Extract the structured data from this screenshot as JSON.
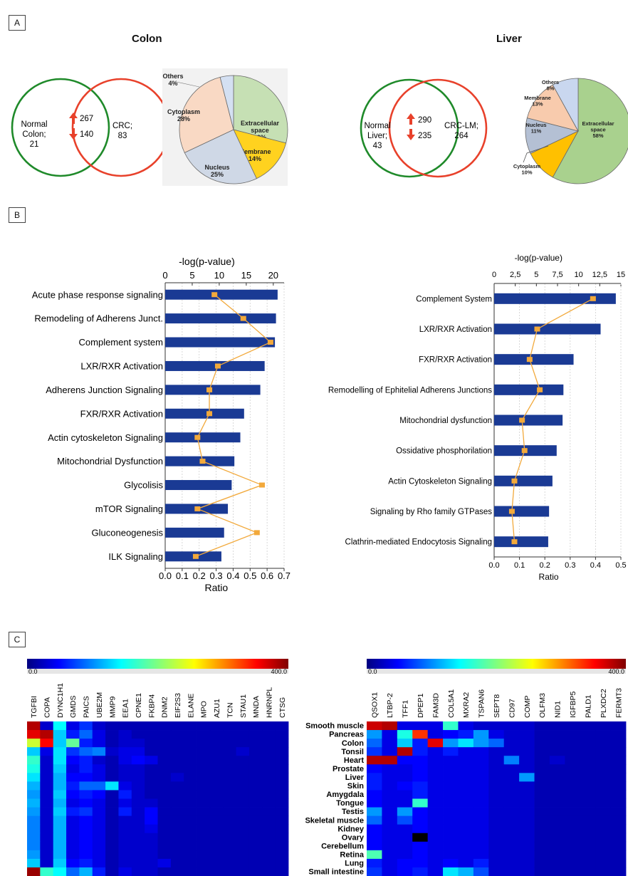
{
  "panels": {
    "a": "A",
    "b": "B",
    "c": "C"
  },
  "colors": {
    "venn_normal": "#1f8a2a",
    "venn_disease": "#e8412b",
    "up_arrow": "#e8412b",
    "bar": "#1a3a94",
    "line": "#f2a93b"
  },
  "venn": {
    "colon": {
      "title": "Colon",
      "left_label": [
        "Normal",
        "Colon;",
        "21"
      ],
      "right_label": [
        "CRC;",
        "83"
      ],
      "up": "267",
      "down": "140"
    },
    "liver": {
      "title": "Liver",
      "left_label": [
        "Normal",
        "Liver;",
        "43"
      ],
      "right_label": [
        "CRC-LM;",
        "264"
      ],
      "up": "290",
      "down": "235"
    }
  },
  "chart_data": [
    {
      "type": "pie",
      "name": "Colon",
      "slices": [
        {
          "label": [
            "Extracellular",
            "space"
          ],
          "pct": "29%",
          "value": 29,
          "color": "#c6e0b4"
        },
        {
          "label": [
            "Membrane"
          ],
          "pct": "14%",
          "value": 14,
          "color": "#ffd21f"
        },
        {
          "label": [
            "Nucleus"
          ],
          "pct": "25%",
          "value": 25,
          "color": "#cfd8e6"
        },
        {
          "label": [
            "Cytoplasm"
          ],
          "pct": "28%",
          "value": 28,
          "color": "#f9d9c4"
        },
        {
          "label": [
            "Others"
          ],
          "pct": "4%",
          "value": 4,
          "color": "#d4e0f2"
        }
      ]
    },
    {
      "type": "pie",
      "name": "Liver",
      "slices": [
        {
          "label": [
            "Extracellular",
            "space"
          ],
          "pct": "58%",
          "value": 58,
          "color": "#a9d18e"
        },
        {
          "label": [
            "Cytoplasm"
          ],
          "pct": "10%",
          "value": 10,
          "color": "#ffc000"
        },
        {
          "label": [
            "Nucleus"
          ],
          "pct": "11%",
          "value": 11,
          "color": "#b4c0d4"
        },
        {
          "label": [
            "Membrane"
          ],
          "pct": "13%",
          "value": 13,
          "color": "#f8cbad"
        },
        {
          "label": [
            "Others"
          ],
          "pct": "8%",
          "value": 8,
          "color": "#c9d7ef"
        }
      ]
    },
    {
      "type": "bar",
      "name": "Colon pathways",
      "xlabel_top": "-log(p-value)",
      "xlabel_bottom": "Ratio",
      "top_ticks": [
        "0",
        "5",
        "10",
        "15",
        "20"
      ],
      "top_range": [
        0,
        22
      ],
      "bottom_ticks": [
        "0.0",
        "0.1",
        "0.2",
        "0.3",
        "0.4",
        "0.5",
        "0.6",
        "0.7"
      ],
      "bottom_range": [
        0,
        0.7
      ],
      "categories": [
        "Acute phase response signaling",
        "Remodeling of Adherens Junct.",
        "Complement system",
        "LXR/RXR Activation",
        "Adherens Junction Signaling",
        "FXR/RXR Activation",
        "Actin cytoskeleton Signaling",
        "Mitochondrial Dysfunction",
        "Glycolisis",
        "mTOR Signaling",
        "Gluconeogenesis",
        "ILK Signaling"
      ],
      "series": [
        {
          "name": "-log(p-value)",
          "values": [
            20.8,
            20.5,
            20.3,
            18.4,
            17.6,
            14.6,
            13.9,
            12.8,
            12.3,
            11.6,
            10.9,
            10.4
          ]
        },
        {
          "name": "Ratio",
          "values": [
            0.29,
            0.46,
            0.62,
            0.31,
            0.26,
            0.26,
            0.19,
            0.22,
            0.57,
            0.19,
            0.54,
            0.18
          ]
        }
      ]
    },
    {
      "type": "bar",
      "name": "Liver pathways",
      "xlabel_top": "-log(p-value)",
      "xlabel_bottom": "Ratio",
      "top_ticks": [
        "0",
        "2,5",
        "5",
        "7,5",
        "10",
        "12,5",
        "15"
      ],
      "top_range": [
        0,
        15
      ],
      "bottom_ticks": [
        "0.0",
        "0.1",
        "0.2",
        "0.3",
        "0.4",
        "0.5"
      ],
      "bottom_range": [
        0,
        0.5
      ],
      "categories": [
        "Complement System",
        "LXR/RXR Activation",
        "FXR/RXR Activation",
        "Remodelling of Ephitelial Adherens Junctions",
        "Mitochondrial dysfunction",
        "Ossidative phosphorilation",
        "Actin Cytoskeleton Signaling",
        "Signaling by Rho family GTPases",
        "Clathrin-mediated Endocytosis Signaling"
      ],
      "series": [
        {
          "name": "-log(p-value)",
          "values": [
            14.4,
            12.6,
            9.4,
            8.2,
            8.1,
            7.4,
            6.9,
            6.5,
            6.4
          ]
        },
        {
          "name": "Ratio",
          "values": [
            0.39,
            0.17,
            0.14,
            0.18,
            0.11,
            0.12,
            0.08,
            0.07,
            0.08
          ]
        }
      ]
    },
    {
      "type": "heatmap",
      "name": "Colon tissue expression",
      "scale_min": "0.0",
      "scale_max": "400.0",
      "columns": [
        "TGFBI",
        "COPA",
        "DYNC1H1",
        "GMDS",
        "PAICS",
        "UBE2M",
        "MMP9",
        "EEA1",
        "CPNE1",
        "FKBP4",
        "DNM2",
        "EIF2S3",
        "ELANE",
        "MPO",
        "AZU1",
        "TCN",
        "STAU1",
        "MNDA",
        "HNRNPL",
        "CTSG"
      ],
      "rows": [
        "Smooth muscle",
        "Pancreas",
        "Colon",
        "Tonsil",
        "Heart",
        "Prostate",
        "Liver",
        "Skin",
        "Amygdala",
        "Tongue",
        "Testis",
        "Skeletal muscle",
        "Kidney",
        "Ovary",
        "Cerebellum",
        "Retina",
        "Lung",
        "Small intestine"
      ],
      "values": [
        [
          380,
          30,
          150,
          40,
          70,
          30,
          20,
          20,
          20,
          20,
          20,
          20,
          20,
          20,
          20,
          20,
          20,
          20,
          20,
          20
        ],
        [
          360,
          380,
          130,
          60,
          90,
          40,
          20,
          30,
          20,
          20,
          20,
          20,
          20,
          20,
          20,
          20,
          20,
          20,
          20,
          20
        ],
        [
          230,
          350,
          130,
          190,
          60,
          40,
          20,
          30,
          30,
          20,
          20,
          20,
          20,
          20,
          20,
          20,
          20,
          20,
          20,
          20
        ],
        [
          130,
          40,
          140,
          70,
          90,
          100,
          30,
          40,
          40,
          20,
          20,
          20,
          20,
          20,
          20,
          20,
          30,
          20,
          20,
          20
        ],
        [
          170,
          30,
          140,
          50,
          60,
          30,
          20,
          40,
          50,
          40,
          20,
          20,
          20,
          20,
          20,
          20,
          20,
          20,
          20,
          20
        ],
        [
          160,
          30,
          130,
          40,
          60,
          40,
          20,
          30,
          30,
          20,
          20,
          20,
          20,
          20,
          20,
          20,
          20,
          20,
          20,
          20
        ],
        [
          140,
          30,
          120,
          50,
          50,
          40,
          20,
          30,
          30,
          20,
          20,
          30,
          20,
          20,
          20,
          20,
          20,
          20,
          20,
          20
        ],
        [
          120,
          30,
          120,
          60,
          90,
          90,
          140,
          40,
          30,
          20,
          20,
          20,
          20,
          20,
          20,
          20,
          20,
          20,
          20,
          20
        ],
        [
          110,
          30,
          130,
          50,
          60,
          50,
          20,
          60,
          30,
          20,
          20,
          20,
          20,
          20,
          20,
          20,
          20,
          20,
          20,
          20
        ],
        [
          120,
          30,
          120,
          40,
          50,
          40,
          20,
          40,
          30,
          30,
          20,
          20,
          20,
          20,
          20,
          20,
          20,
          20,
          20,
          20
        ],
        [
          110,
          30,
          130,
          60,
          70,
          40,
          20,
          60,
          30,
          50,
          20,
          20,
          20,
          20,
          20,
          20,
          20,
          20,
          20,
          20
        ],
        [
          100,
          30,
          120,
          40,
          50,
          40,
          20,
          30,
          30,
          50,
          20,
          20,
          20,
          20,
          20,
          20,
          20,
          20,
          20,
          20
        ],
        [
          100,
          30,
          120,
          40,
          50,
          40,
          20,
          30,
          30,
          40,
          20,
          20,
          20,
          20,
          20,
          20,
          20,
          20,
          20,
          20
        ],
        [
          100,
          30,
          120,
          40,
          50,
          40,
          20,
          30,
          30,
          30,
          20,
          20,
          20,
          20,
          20,
          20,
          20,
          20,
          20,
          20
        ],
        [
          100,
          30,
          120,
          40,
          50,
          40,
          20,
          30,
          30,
          30,
          20,
          20,
          20,
          20,
          20,
          20,
          20,
          20,
          20,
          20
        ],
        [
          110,
          30,
          120,
          40,
          50,
          40,
          20,
          30,
          30,
          30,
          20,
          20,
          20,
          20,
          20,
          20,
          20,
          20,
          20,
          20
        ],
        [
          130,
          30,
          130,
          50,
          60,
          40,
          20,
          30,
          30,
          30,
          40,
          20,
          20,
          20,
          20,
          20,
          20,
          20,
          20,
          20
        ],
        [
          390,
          170,
          150,
          90,
          120,
          60,
          20,
          40,
          30,
          30,
          20,
          20,
          20,
          20,
          20,
          20,
          20,
          20,
          20,
          20
        ]
      ]
    },
    {
      "type": "heatmap",
      "name": "Liver tissue expression",
      "scale_min": "0.0",
      "scale_max": "400.0",
      "columns": [
        "QSOX1",
        "LTBP-2",
        "TFF1",
        "DPEP1",
        "FAM3D",
        "COL5A1",
        "MXRA2",
        "TSPAN6",
        "SEPT8",
        "CD97",
        "COMP",
        "OLFM3",
        "NID1",
        "IGFBP5",
        "PALD1",
        "PLXDC2",
        "FERMT3"
      ],
      "rows": [
        "Smooth muscle",
        "Pancreas",
        "Colon",
        "Tonsil",
        "Heart",
        "Prostate",
        "Liver",
        "Skin",
        "Amygdala",
        "Tongue",
        "Testis",
        "Skeletal muscle",
        "Kidney",
        "Ovary",
        "Cerebellum",
        "Retina",
        "Lung",
        "Small intestine"
      ],
      "values": [
        [
          370,
          380,
          40,
          40,
          40,
          170,
          40,
          30,
          30,
          30,
          30,
          20,
          20,
          20,
          20,
          20,
          20
        ],
        [
          110,
          40,
          160,
          330,
          40,
          50,
          60,
          110,
          40,
          30,
          30,
          20,
          20,
          20,
          20,
          20,
          20
        ],
        [
          90,
          40,
          130,
          60,
          360,
          110,
          140,
          110,
          90,
          30,
          30,
          20,
          20,
          20,
          20,
          20,
          20
        ],
        [
          70,
          40,
          380,
          60,
          40,
          60,
          40,
          40,
          30,
          30,
          30,
          20,
          20,
          20,
          20,
          20,
          20
        ],
        [
          380,
          380,
          50,
          50,
          40,
          40,
          40,
          40,
          30,
          100,
          30,
          20,
          30,
          20,
          20,
          20,
          20
        ],
        [
          50,
          40,
          40,
          50,
          40,
          40,
          40,
          40,
          30,
          30,
          30,
          20,
          20,
          20,
          20,
          20,
          20
        ],
        [
          60,
          40,
          40,
          50,
          40,
          40,
          40,
          40,
          30,
          30,
          110,
          20,
          20,
          20,
          20,
          20,
          20
        ],
        [
          60,
          40,
          50,
          60,
          40,
          40,
          40,
          40,
          30,
          30,
          30,
          20,
          20,
          20,
          20,
          20,
          20
        ],
        [
          50,
          40,
          40,
          60,
          40,
          40,
          40,
          40,
          30,
          30,
          30,
          20,
          20,
          20,
          20,
          20,
          20
        ],
        [
          50,
          40,
          40,
          170,
          40,
          40,
          40,
          40,
          30,
          30,
          30,
          20,
          20,
          20,
          20,
          20,
          20
        ],
        [
          110,
          40,
          110,
          50,
          40,
          40,
          40,
          40,
          30,
          30,
          30,
          20,
          20,
          20,
          20,
          20,
          20
        ],
        [
          90,
          40,
          80,
          50,
          40,
          40,
          40,
          40,
          30,
          30,
          30,
          20,
          20,
          20,
          20,
          20,
          20
        ],
        [
          50,
          40,
          40,
          50,
          40,
          40,
          40,
          40,
          30,
          30,
          30,
          20,
          20,
          20,
          20,
          20,
          20
        ],
        [
          50,
          40,
          40,
          -1,
          40,
          40,
          40,
          40,
          30,
          30,
          30,
          20,
          20,
          20,
          20,
          20,
          20
        ],
        [
          50,
          40,
          40,
          50,
          40,
          40,
          40,
          40,
          30,
          30,
          30,
          20,
          20,
          20,
          20,
          20,
          20
        ],
        [
          180,
          40,
          40,
          50,
          40,
          40,
          40,
          40,
          30,
          30,
          30,
          20,
          20,
          20,
          20,
          20,
          20
        ],
        [
          60,
          40,
          50,
          50,
          40,
          50,
          40,
          60,
          30,
          30,
          30,
          20,
          20,
          20,
          20,
          20,
          20
        ],
        [
          70,
          40,
          50,
          60,
          40,
          140,
          120,
          80,
          30,
          30,
          30,
          20,
          20,
          20,
          20,
          20,
          20
        ]
      ]
    }
  ]
}
